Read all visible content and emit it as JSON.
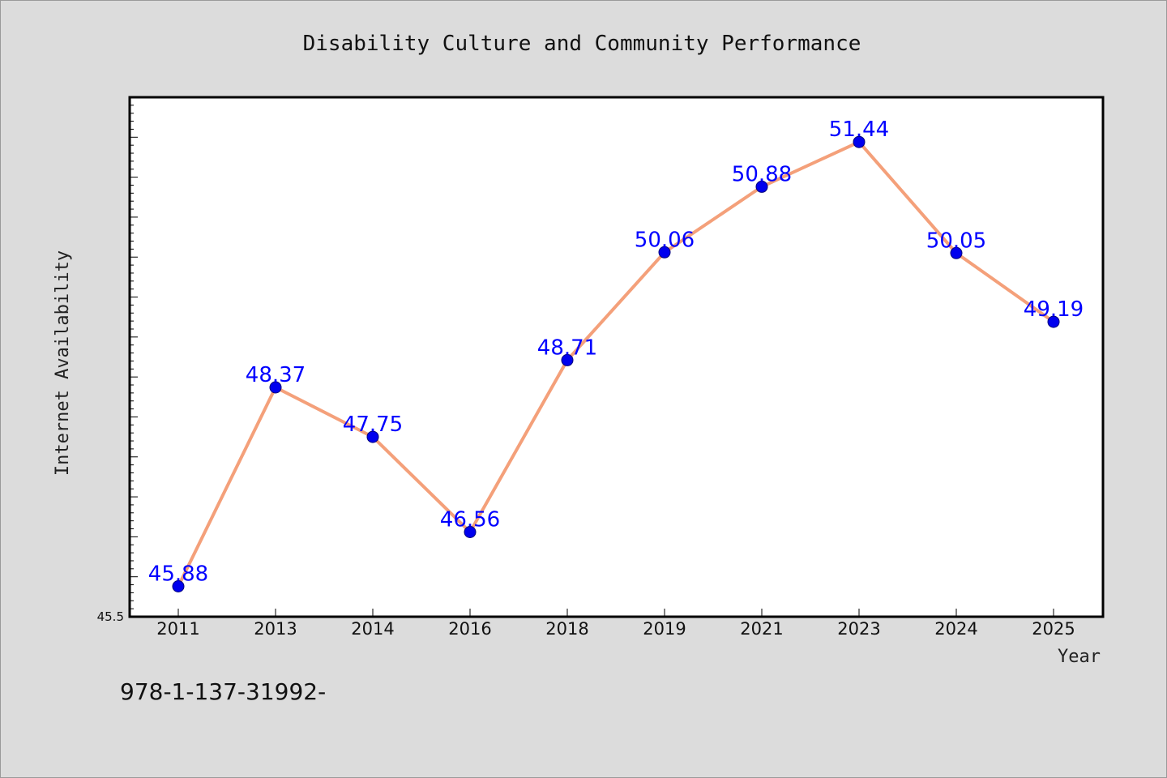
{
  "chart_data": {
    "type": "line",
    "title": "Disability Culture and Community Performance",
    "xlabel": "Year",
    "ylabel": "Internet Availability",
    "categories": [
      "2011",
      "2013",
      "2014",
      "2016",
      "2018",
      "2019",
      "2021",
      "2023",
      "2024",
      "2025"
    ],
    "series": [
      {
        "values": [
          45.88,
          48.37,
          47.75,
          46.56,
          48.71,
          50.06,
          50.88,
          51.44,
          50.05,
          49.19
        ],
        "labels": [
          "45.88",
          "48.37",
          "47.75",
          "46.56",
          "48.71",
          "50.06",
          "50.88",
          "51.44",
          "50.05",
          "49.19"
        ]
      }
    ],
    "ylim": [
      45.5,
      52.0
    ],
    "yticks_labeled": [
      "45.5"
    ],
    "grid": false,
    "legend": "none",
    "colors": {
      "line": "#f4a07a",
      "marker": "#0000ee",
      "label": "#0000ff",
      "plot_bg": "#ffffff",
      "page_bg": "#dcdcdc"
    }
  },
  "footnote": "978-1-137-31992-"
}
